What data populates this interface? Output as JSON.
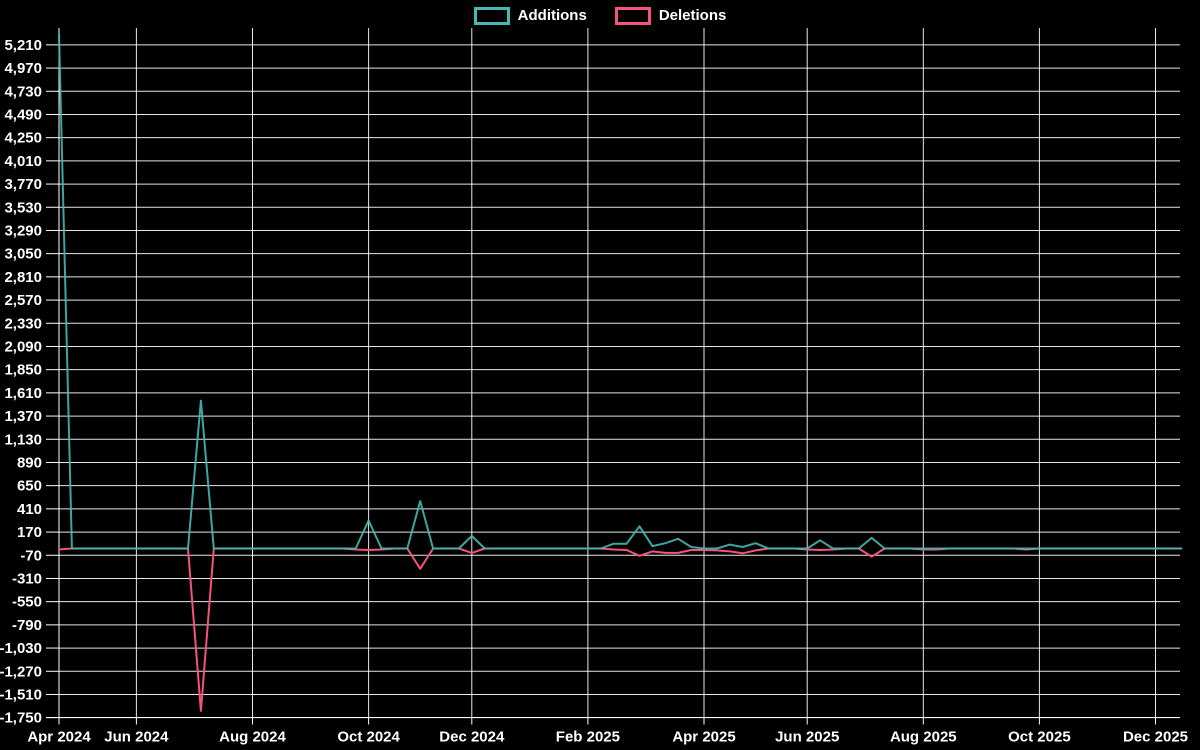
{
  "background_color": "#000000",
  "chart_data": {
    "type": "line",
    "title": "",
    "xlabel": "",
    "ylabel": "",
    "grid": true,
    "legend_position": "top",
    "axis_color": "#ffffff",
    "grid_color": "#ffffff",
    "legend": [
      {
        "name": "Additions",
        "color": "#45b8b2"
      },
      {
        "name": "Deletions",
        "color": "#f4537b"
      }
    ],
    "ylim": [
      -1750,
      5400
    ],
    "y_tick_values": [
      5210,
      4970,
      4730,
      4490,
      4250,
      4010,
      3770,
      3530,
      3290,
      3050,
      2810,
      2570,
      2330,
      2090,
      1850,
      1610,
      1370,
      1130,
      890,
      650,
      410,
      170,
      -70,
      -310,
      -550,
      -790,
      -1030,
      -1270,
      -1510,
      -1750
    ],
    "x_ticks": [
      {
        "week": 0,
        "label": "Apr 2024"
      },
      {
        "week": 6,
        "label": "Jun 2024"
      },
      {
        "week": 15,
        "label": "Aug 2024"
      },
      {
        "week": 24,
        "label": "Oct 2024"
      },
      {
        "week": 32,
        "label": "Dec 2024"
      },
      {
        "week": 41,
        "label": "Feb 2025"
      },
      {
        "week": 50,
        "label": "Apr 2025"
      },
      {
        "week": 58,
        "label": "Jun 2025"
      },
      {
        "week": 67,
        "label": "Aug 2025"
      },
      {
        "week": 76,
        "label": "Oct 2025"
      },
      {
        "week": 85,
        "label": "Dec 2025"
      }
    ],
    "weeks": 88,
    "series": [
      {
        "name": "Additions",
        "color": "#45b8b2",
        "values": [
          5320,
          0,
          0,
          0,
          0,
          0,
          0,
          0,
          0,
          0,
          0,
          1530,
          0,
          0,
          0,
          0,
          0,
          0,
          0,
          0,
          0,
          0,
          0,
          0,
          290,
          0,
          0,
          0,
          490,
          0,
          0,
          0,
          130,
          0,
          0,
          0,
          0,
          0,
          0,
          0,
          0,
          0,
          0,
          50,
          50,
          230,
          25,
          55,
          100,
          15,
          0,
          0,
          40,
          15,
          55,
          0,
          0,
          0,
          0,
          85,
          0,
          0,
          0,
          110,
          0,
          0,
          0,
          0,
          0,
          0,
          0,
          0,
          0,
          0,
          0,
          0,
          0,
          0,
          0,
          0,
          0,
          0,
          0,
          0,
          0,
          0,
          0,
          0
        ]
      },
      {
        "name": "Deletions",
        "color": "#f4537b",
        "values": [
          -10,
          0,
          0,
          0,
          0,
          0,
          0,
          0,
          0,
          0,
          0,
          -1680,
          0,
          0,
          0,
          0,
          0,
          0,
          0,
          0,
          0,
          0,
          0,
          -10,
          -15,
          -10,
          0,
          0,
          -210,
          0,
          0,
          0,
          -45,
          0,
          0,
          0,
          0,
          0,
          0,
          0,
          0,
          0,
          0,
          -10,
          -15,
          -75,
          -30,
          -45,
          -45,
          -15,
          -15,
          -20,
          -30,
          -50,
          -20,
          0,
          0,
          0,
          -10,
          -15,
          -10,
          0,
          0,
          -85,
          0,
          0,
          0,
          -10,
          -10,
          0,
          0,
          0,
          0,
          0,
          0,
          -10,
          0,
          0,
          0,
          0,
          0,
          0,
          0,
          0,
          0,
          0,
          0,
          0
        ]
      }
    ]
  }
}
